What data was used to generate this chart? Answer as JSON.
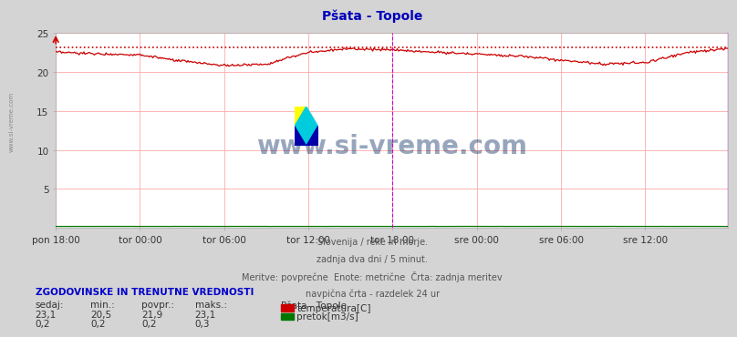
{
  "title": "Pšata - Topole",
  "title_color": "#0000bb",
  "bg_color": "#d4d4d4",
  "plot_bg_color": "#ffffff",
  "grid_color": "#ffaaaa",
  "x_labels": [
    "pon 18:00",
    "tor 00:00",
    "tor 06:00",
    "tor 12:00",
    "tor 18:00",
    "sre 00:00",
    "sre 06:00",
    "sre 12:00"
  ],
  "x_ticks_pos": [
    0,
    72,
    144,
    216,
    288,
    360,
    432,
    504
  ],
  "total_points": 576,
  "ylim": [
    0,
    25
  ],
  "yticks": [
    5,
    10,
    15,
    20,
    25
  ],
  "temp_max_line": 23.1,
  "temp_color": "#cc0000",
  "flow_color": "#007700",
  "watermark_text": "www.si-vreme.com",
  "watermark_color": "#1a3a6b",
  "subtitle_lines": [
    "Slovenija / reke in morje.",
    "zadnja dva dni / 5 minut.",
    "Meritve: povprečne  Enote: metrične  Črta: zadnja meritev",
    "navpična črta - razdelek 24 ur"
  ],
  "subtitle_color": "#555555",
  "sidebar_text": "www.si-vreme.com",
  "sidebar_color": "#777777",
  "legend_title": "Pšata - Topole",
  "legend_entries": [
    "temperatura[C]",
    "pretok[m3/s]"
  ],
  "legend_colors": [
    "#cc0000",
    "#007700"
  ],
  "table_header": [
    "sedaj:",
    "min.:",
    "povpr.:",
    "maks.:"
  ],
  "table_data": [
    [
      "23,1",
      "20,5",
      "21,9",
      "23,1"
    ],
    [
      "0,2",
      "0,2",
      "0,2",
      "0,3"
    ]
  ],
  "table_title": "ZGODOVINSKE IN TRENUTNE VREDNOSTI",
  "table_title_color": "#0000cc",
  "vline_pos": 288,
  "vline_color": "#cc00cc",
  "right_border_color": "#cc00cc"
}
